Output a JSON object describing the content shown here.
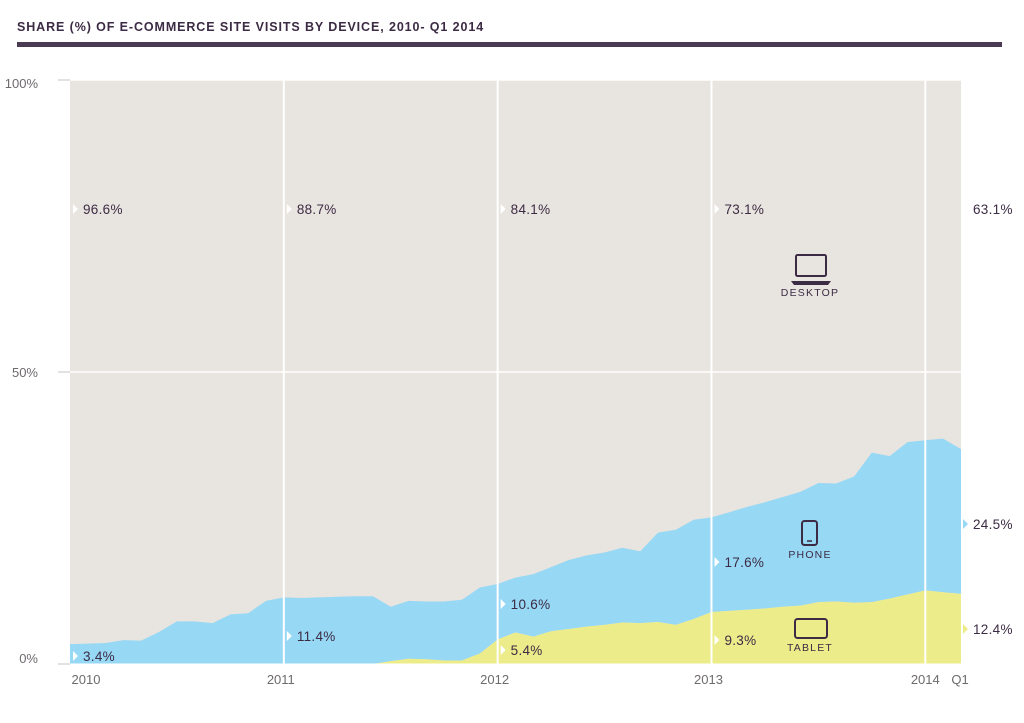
{
  "chart_data": {
    "type": "area",
    "title": "SHARE (%) OF E-COMMERCE SITE VISITS BY DEVICE, 2010- Q1 2014",
    "ylim": [
      0,
      100
    ],
    "y_ticks": [
      "0%",
      "50%",
      "100%"
    ],
    "x_ticks": [
      "2010",
      "2011",
      "2012",
      "2013",
      "2014",
      "Q1"
    ],
    "stacking": "stacked",
    "grid": true,
    "colors": {
      "desktop": "#e8e4df",
      "phone": "#97d8f5",
      "tablet": "#ecec8a",
      "text": "#3c2b44",
      "rule": "#4b3a53"
    },
    "x": [
      2010.0,
      2010.083,
      2010.167,
      2010.25,
      2010.333,
      2010.417,
      2010.5,
      2010.583,
      2010.667,
      2010.75,
      2010.833,
      2010.917,
      2011.0,
      2011.083,
      2011.167,
      2011.25,
      2011.333,
      2011.417,
      2011.5,
      2011.583,
      2011.667,
      2011.75,
      2011.833,
      2011.917,
      2012.0,
      2012.083,
      2012.167,
      2012.25,
      2012.333,
      2012.417,
      2012.5,
      2012.583,
      2012.667,
      2012.75,
      2012.833,
      2012.917,
      2013.0,
      2013.083,
      2013.167,
      2013.25,
      2013.333,
      2013.417,
      2013.5,
      2013.583,
      2013.667,
      2013.75,
      2013.833,
      2013.917,
      2014.0,
      2014.083,
      2014.167
    ],
    "series": [
      {
        "name": "TABLET",
        "values": [
          0.0,
          0.0,
          0.0,
          0.0,
          0.0,
          0.0,
          0.0,
          0.0,
          0.0,
          0.0,
          0.0,
          0.0,
          0.0,
          0.0,
          0.0,
          0.0,
          0.0,
          0.0,
          0.5,
          0.9,
          0.8,
          0.6,
          0.6,
          1.8,
          4.2,
          5.4,
          4.7,
          5.6,
          6.0,
          6.4,
          6.7,
          7.1,
          7.0,
          7.2,
          6.7,
          7.7,
          8.9,
          9.1,
          9.3,
          9.5,
          9.8,
          10.0,
          10.6,
          10.7,
          10.5,
          10.6,
          11.2,
          11.9,
          12.6,
          12.3,
          12.0
        ]
      },
      {
        "name": "PHONE",
        "values": [
          3.4,
          3.5,
          3.6,
          4.1,
          4.0,
          5.5,
          7.3,
          7.3,
          7.0,
          8.5,
          8.7,
          10.8,
          11.4,
          11.3,
          11.4,
          11.5,
          11.6,
          11.6,
          9.3,
          9.9,
          9.9,
          10.1,
          10.4,
          11.3,
          9.5,
          9.4,
          10.7,
          11.0,
          11.8,
          12.2,
          12.4,
          12.8,
          12.3,
          15.3,
          16.3,
          17.0,
          16.2,
          16.9,
          17.6,
          18.2,
          18.8,
          19.5,
          20.4,
          20.2,
          21.6,
          25.6,
          24.4,
          26.1,
          25.7,
          26.3,
          24.8
        ]
      }
    ],
    "desktop_series": "DESKTOP",
    "desktop_values": [
      "96.6%",
      "88.7%",
      "84.1%",
      "73.1%",
      "63.1%"
    ],
    "phone_values": [
      "3.4%",
      "11.4%",
      "10.6%",
      "17.6%",
      "24.5%"
    ],
    "tablet_values": [
      "5.4%",
      "9.3%",
      "12.4%"
    ]
  }
}
